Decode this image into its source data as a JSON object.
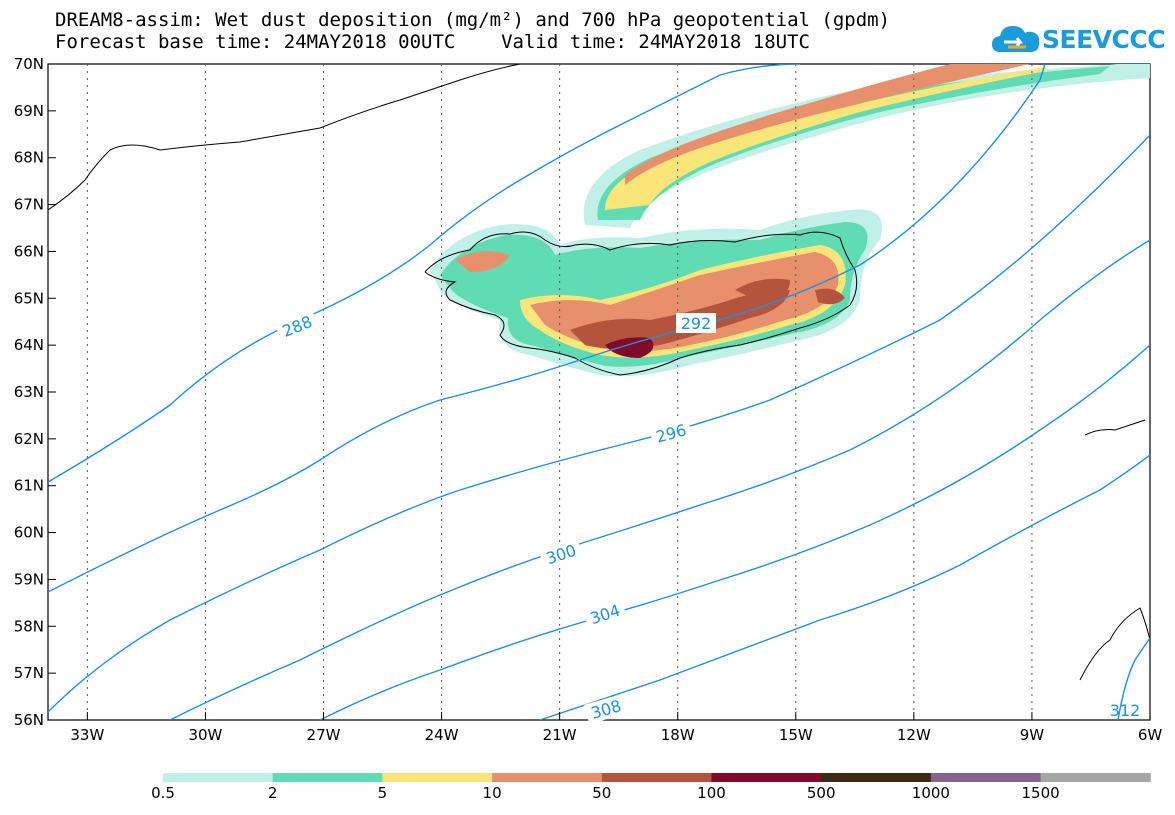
{
  "title_line1": "DREAM8-assim: Wet dust deposition (mg/m²) and 700 hPa geopotential (gpdm)",
  "title_line2": "Forecast base time: 24MAY2018 00UTC    Valid time: 24MAY2018 18UTC",
  "logo_text": "SEEVCCC",
  "colors": {
    "contour": "#1e90e0",
    "levels": [
      "#c0f0e8",
      "#60dcb4",
      "#fae678",
      "#e8906c",
      "#b4543c",
      "#820a28",
      "#3c2814",
      "#82648c",
      "#a6a6a6"
    ]
  },
  "map": {
    "lat_labels": [
      "70N",
      "69N",
      "68N",
      "67N",
      "66N",
      "65N",
      "64N",
      "63N",
      "62N",
      "61N",
      "60N",
      "59N",
      "58N",
      "57N",
      "56N"
    ],
    "lon_labels": [
      "33W",
      "30W",
      "27W",
      "24W",
      "21W",
      "18W",
      "15W",
      "12W",
      "9W",
      "6W"
    ],
    "contour_labels": [
      "288",
      "292",
      "296",
      "300",
      "304",
      "308",
      "312"
    ]
  },
  "colorbar": {
    "labels": [
      "0.5",
      "2",
      "5",
      "10",
      "50",
      "100",
      "500",
      "1000",
      "1500"
    ]
  }
}
